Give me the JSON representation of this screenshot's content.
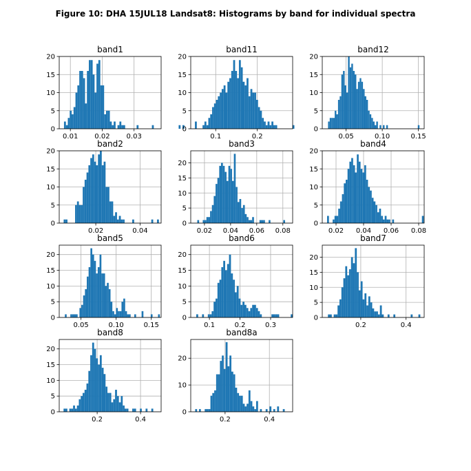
{
  "figure": {
    "title": "Figure 10: DHA 15JUL18  Landsat8: Histograms by band for individual spectra",
    "bar_color": "#1f77b4",
    "grid_color": "#b0b0b0"
  },
  "chart_data": [
    {
      "type": "bar",
      "title": "band1",
      "xlim": [
        0.0065,
        0.0385
      ],
      "ylim": [
        0,
        20
      ],
      "xticks": [
        0.01,
        0.02,
        0.03
      ],
      "xtick_labels": [
        "0.01",
        "0.02",
        "0.03"
      ],
      "yticks": [
        0,
        5,
        10,
        15,
        20
      ],
      "ytick_labels": [
        "0",
        "5",
        "10",
        "15",
        "20"
      ],
      "bin_start": 0.008,
      "bin_width": 0.0006,
      "counts": [
        2,
        1,
        3,
        5,
        4,
        6,
        10,
        12,
        16,
        16,
        14,
        7,
        16,
        19,
        19,
        15,
        10,
        18,
        19,
        12,
        12,
        4,
        5,
        5,
        2,
        1,
        2,
        0,
        1,
        2,
        1,
        1,
        0,
        0,
        0,
        0,
        0,
        0,
        1,
        0,
        0,
        0,
        0,
        0,
        0,
        0,
        1,
        0,
        0,
        0,
        0,
        0,
        0,
        0,
        0,
        0,
        0,
        0,
        0,
        0,
        1,
        0,
        1
      ]
    },
    {
      "type": "bar",
      "title": "band11",
      "xlim": [
        0.04,
        0.285
      ],
      "ylim": [
        0,
        20
      ],
      "xticks": [
        0.1,
        0.2
      ],
      "xtick_labels": [
        "0.1",
        "0.2"
      ],
      "yticks": [
        0,
        5,
        10,
        15,
        20
      ],
      "ytick_labels": [
        "0",
        "5",
        "10",
        "15",
        "20"
      ],
      "bin_start": 0.05,
      "bin_width": 0.0046,
      "counts": [
        2,
        0,
        0,
        0,
        1,
        2,
        1,
        3,
        4,
        6,
        7,
        8,
        9,
        10,
        11,
        12,
        10,
        13,
        14,
        16,
        19,
        16,
        14,
        19,
        17,
        13,
        12,
        14,
        9,
        11,
        10,
        10,
        8,
        6,
        5,
        3,
        2,
        1,
        2,
        1,
        2,
        1,
        1,
        0,
        0,
        0,
        0,
        0,
        0,
        0,
        0,
        1,
        0
      ]
    },
    {
      "type": "bar",
      "title": "band12",
      "xlim": [
        0.017,
        0.158
      ],
      "ylim": [
        0,
        20
      ],
      "xticks": [
        0.05,
        0.1,
        0.15
      ],
      "xtick_labels": [
        "0.05",
        "0.10",
        "0.15"
      ],
      "yticks": [
        0,
        5,
        10,
        15,
        20
      ],
      "ytick_labels": [
        "0",
        "5",
        "10",
        "15",
        "20"
      ],
      "bin_start": 0.025,
      "bin_width": 0.0023,
      "counts": [
        2,
        3,
        3,
        3,
        5,
        4,
        8,
        9,
        15,
        16,
        12,
        10,
        20,
        17,
        18,
        16,
        15,
        11,
        13,
        14,
        13,
        11,
        9,
        8,
        5,
        4,
        3,
        2,
        1,
        2,
        0,
        1,
        0,
        1,
        0,
        1,
        0,
        0,
        0,
        0,
        0,
        0,
        0,
        0,
        0,
        0,
        0,
        0,
        0,
        0,
        0,
        0,
        0,
        0,
        1
      ]
    },
    {
      "type": "bar",
      "title": "band2",
      "xlim": [
        0.0035,
        0.0495
      ],
      "ylim": [
        0,
        20
      ],
      "xticks": [
        0.02,
        0.04
      ],
      "xtick_labels": [
        "0.02",
        "0.04"
      ],
      "yticks": [
        0,
        5,
        10,
        15,
        20
      ],
      "ytick_labels": [
        "0",
        "5",
        "10",
        "15",
        "20"
      ],
      "bin_start": 0.0055,
      "bin_width": 0.00086,
      "counts": [
        1,
        1,
        0,
        0,
        0,
        0,
        5,
        6,
        5,
        5,
        10,
        12,
        14,
        16,
        18,
        19,
        17,
        16,
        19,
        20,
        16,
        17,
        10,
        10,
        6,
        6,
        2,
        3,
        1,
        2,
        1,
        1,
        0,
        0,
        0,
        0,
        1,
        0,
        0,
        0,
        0,
        0,
        0,
        0,
        0,
        0,
        1,
        0,
        0,
        1
      ]
    },
    {
      "type": "bar",
      "title": "band3",
      "xlim": [
        0.0095,
        0.0875
      ],
      "ylim": [
        0,
        24
      ],
      "xticks": [
        0.02,
        0.04,
        0.06,
        0.08
      ],
      "xtick_labels": [
        "0.02",
        "0.04",
        "0.06",
        "0.08"
      ],
      "yticks": [
        0,
        5,
        10,
        15,
        20
      ],
      "ytick_labels": [
        "0",
        "5",
        "10",
        "15",
        "20"
      ],
      "bin_start": 0.0145,
      "bin_width": 0.0014,
      "counts": [
        1,
        0,
        0,
        1,
        1,
        2,
        2,
        4,
        6,
        9,
        13,
        15,
        19,
        20,
        19,
        17,
        14,
        19,
        18,
        14,
        23,
        12,
        7,
        8,
        5,
        6,
        3,
        2,
        1,
        1,
        2,
        0,
        0,
        0,
        1,
        1,
        1,
        0,
        0,
        1,
        0,
        0,
        0,
        0,
        0,
        0,
        0,
        1
      ]
    },
    {
      "type": "bar",
      "title": "band4",
      "xlim": [
        0.01,
        0.084
      ],
      "ylim": [
        0,
        20
      ],
      "xticks": [
        0.02,
        0.04,
        0.06,
        0.08
      ],
      "xtick_labels": [
        "0.02",
        "0.04",
        "0.06",
        "0.08"
      ],
      "yticks": [
        0,
        5,
        10,
        15,
        20
      ],
      "ytick_labels": [
        "0",
        "5",
        "10",
        "15",
        "20"
      ],
      "bin_start": 0.0135,
      "bin_width": 0.00135,
      "counts": [
        2,
        0,
        0,
        1,
        2,
        2,
        4,
        6,
        8,
        11,
        12,
        15,
        17,
        18,
        16,
        14,
        19,
        17,
        15,
        14,
        16,
        12,
        10,
        9,
        7,
        6,
        5,
        3,
        4,
        2,
        1,
        2,
        1,
        1,
        0,
        1,
        0,
        0,
        0,
        0,
        0,
        0,
        0,
        0,
        0,
        0,
        0,
        0,
        0,
        0,
        0,
        2
      ]
    },
    {
      "type": "bar",
      "title": "band5",
      "xlim": [
        0.019,
        0.164
      ],
      "ylim": [
        0,
        23
      ],
      "xticks": [
        0.05,
        0.1,
        0.15
      ],
      "xtick_labels": [
        "0.05",
        "0.10",
        "0.15"
      ],
      "yticks": [
        0,
        5,
        10,
        15,
        20
      ],
      "ytick_labels": [
        "0",
        "5",
        "10",
        "15",
        "20"
      ],
      "bin_start": 0.027,
      "bin_width": 0.0026,
      "counts": [
        1,
        0,
        0,
        1,
        1,
        1,
        1,
        0,
        3,
        4,
        7,
        9,
        13,
        16,
        22,
        20,
        18,
        14,
        16,
        20,
        14,
        14,
        10,
        11,
        9,
        5,
        2,
        1,
        3,
        2,
        2,
        5,
        6,
        2,
        1,
        1,
        0,
        0,
        1,
        0,
        0,
        0,
        2,
        0,
        0,
        0,
        0,
        1,
        0,
        0,
        0,
        1
      ]
    },
    {
      "type": "bar",
      "title": "band6",
      "xlim": [
        0.039,
        0.372
      ],
      "ylim": [
        0,
        23
      ],
      "xticks": [
        0.1,
        0.2,
        0.3
      ],
      "xtick_labels": [
        "0.1",
        "0.2",
        "0.3"
      ],
      "yticks": [
        0,
        5,
        10,
        15,
        20
      ],
      "ytick_labels": [
        "0",
        "5",
        "10",
        "15",
        "20"
      ],
      "bin_start": 0.057,
      "bin_width": 0.0063,
      "counts": [
        1,
        0,
        0,
        1,
        0,
        0,
        1,
        1,
        2,
        5,
        6,
        11,
        12,
        16,
        18,
        15,
        17,
        20,
        14,
        12,
        8,
        10,
        6,
        4,
        5,
        4,
        3,
        2,
        3,
        4,
        4,
        3,
        2,
        1,
        0,
        0,
        0,
        0,
        0,
        1,
        1,
        1,
        1,
        0,
        0,
        0,
        0,
        0,
        0,
        1
      ]
    },
    {
      "type": "bar",
      "title": "band7",
      "xlim": [
        0.03,
        0.48
      ],
      "ylim": [
        0,
        24
      ],
      "xticks": [
        0.2,
        0.4
      ],
      "xtick_labels": [
        "0.2",
        "0.4"
      ],
      "yticks": [
        0,
        5,
        10,
        15,
        20
      ],
      "ytick_labels": [
        "0",
        "5",
        "10",
        "15",
        "20"
      ],
      "bin_start": 0.055,
      "bin_width": 0.0085,
      "counts": [
        1,
        1,
        0,
        1,
        1,
        4,
        6,
        10,
        13,
        17,
        14,
        16,
        20,
        18,
        23,
        15,
        9,
        12,
        6,
        8,
        4,
        7,
        5,
        3,
        2,
        2,
        1,
        4,
        1,
        0,
        0,
        1,
        0,
        0,
        1,
        0,
        0,
        0,
        0,
        0,
        0,
        0,
        0,
        1,
        0,
        0,
        0,
        1
      ]
    },
    {
      "type": "bar",
      "title": "band8",
      "xlim": [
        0.025,
        0.495
      ],
      "ylim": [
        0,
        23
      ],
      "xticks": [
        0.2,
        0.4
      ],
      "xtick_labels": [
        "0.2",
        "0.4"
      ],
      "yticks": [
        0,
        5,
        10,
        15,
        20
      ],
      "ytick_labels": [
        "0",
        "5",
        "10",
        "15",
        "20"
      ],
      "bin_start": 0.045,
      "bin_width": 0.0088,
      "counts": [
        1,
        1,
        0,
        1,
        1,
        2,
        1,
        2,
        4,
        5,
        6,
        7,
        9,
        13,
        18,
        22,
        20,
        17,
        15,
        18,
        14,
        12,
        8,
        6,
        6,
        3,
        4,
        7,
        5,
        3,
        5,
        2,
        1,
        1,
        0,
        0,
        1,
        1,
        0,
        0,
        1,
        0,
        0,
        1,
        0,
        0,
        1
      ]
    },
    {
      "type": "bar",
      "title": "band8a",
      "xlim": [
        0.045,
        0.505
      ],
      "ylim": [
        0,
        27
      ],
      "xticks": [
        0.2,
        0.4
      ],
      "xtick_labels": [
        "0.2",
        "0.4"
      ],
      "yticks": [
        0,
        10,
        20
      ],
      "ytick_labels": [
        "0",
        "10",
        "20"
      ],
      "bin_start": 0.065,
      "bin_width": 0.0086,
      "counts": [
        1,
        0,
        1,
        0,
        0,
        1,
        1,
        1,
        6,
        7,
        8,
        14,
        14,
        19,
        21,
        16,
        26,
        17,
        21,
        15,
        14,
        9,
        7,
        6,
        6,
        3,
        2,
        3,
        8,
        4,
        2,
        1,
        4,
        0,
        1,
        0,
        0,
        1,
        0,
        2,
        0,
        1,
        0,
        2,
        0,
        0,
        1
      ]
    }
  ]
}
